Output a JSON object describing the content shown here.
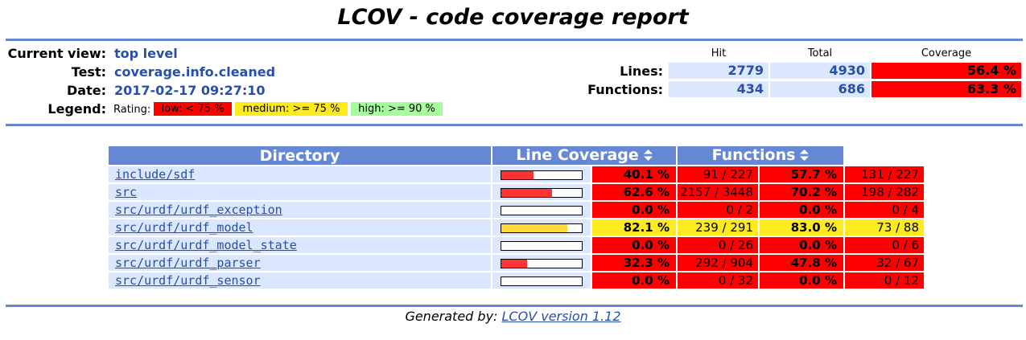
{
  "header": {
    "title": "LCOV - code coverage report",
    "current_view_label": "Current view:",
    "current_view_value": "top level",
    "test_label": "Test:",
    "test_value": "coverage.info.cleaned",
    "date_label": "Date:",
    "date_value": "2017-02-17 09:27:10",
    "legend_label": "Legend:",
    "legend_rating": "Rating:",
    "legend_low": "low: < 75 %",
    "legend_medium": "medium: >= 75 %",
    "legend_high": "high: >= 90 %"
  },
  "summary": {
    "hit_header": "Hit",
    "total_header": "Total",
    "coverage_header": "Coverage",
    "lines_label": "Lines:",
    "lines_hit": "2779",
    "lines_total": "4930",
    "lines_coverage": "56.4 %",
    "functions_label": "Functions:",
    "functions_hit": "434",
    "functions_total": "686",
    "functions_coverage": "63.3 %"
  },
  "table": {
    "col_directory": "Directory",
    "col_line_coverage": "Line Coverage",
    "col_functions": "Functions",
    "rows": [
      {
        "dir": "include/sdf",
        "line_pct": "40.1 %",
        "line_frac": 0.401,
        "line_cnt": "91 / 227",
        "line_rate": "lo",
        "func_pct": "57.7 %",
        "func_cnt": "131 / 227",
        "func_rate": "lo"
      },
      {
        "dir": "src",
        "line_pct": "62.6 %",
        "line_frac": 0.626,
        "line_cnt": "2157 / 3448",
        "line_rate": "lo",
        "func_pct": "70.2 %",
        "func_cnt": "198 / 282",
        "func_rate": "lo"
      },
      {
        "dir": "src/urdf/urdf_exception",
        "line_pct": "0.0 %",
        "line_frac": 0.0,
        "line_cnt": "0 / 2",
        "line_rate": "lo",
        "func_pct": "0.0 %",
        "func_cnt": "0 / 4",
        "func_rate": "lo"
      },
      {
        "dir": "src/urdf/urdf_model",
        "line_pct": "82.1 %",
        "line_frac": 0.821,
        "line_cnt": "239 / 291",
        "line_rate": "med",
        "func_pct": "83.0 %",
        "func_cnt": "73 / 88",
        "func_rate": "med"
      },
      {
        "dir": "src/urdf/urdf_model_state",
        "line_pct": "0.0 %",
        "line_frac": 0.0,
        "line_cnt": "0 / 26",
        "line_rate": "lo",
        "func_pct": "0.0 %",
        "func_cnt": "0 / 6",
        "func_rate": "lo"
      },
      {
        "dir": "src/urdf/urdf_parser",
        "line_pct": "32.3 %",
        "line_frac": 0.323,
        "line_cnt": "292 / 904",
        "line_rate": "lo",
        "func_pct": "47.8 %",
        "func_cnt": "32 / 67",
        "func_rate": "lo"
      },
      {
        "dir": "src/urdf/urdf_sensor",
        "line_pct": "0.0 %",
        "line_frac": 0.0,
        "line_cnt": "0 / 32",
        "line_rate": "lo",
        "func_pct": "0.0 %",
        "func_cnt": "0 / 12",
        "func_rate": "lo"
      }
    ]
  },
  "colors": {
    "low": "#ff0000",
    "medium": "#ffea20",
    "high": "#a7fc9d",
    "bar_low": "#ff3333",
    "bar_medium": "#ffd93a"
  },
  "footer": {
    "generated_by": "Generated by:",
    "lcov_link": "LCOV version 1.12"
  }
}
